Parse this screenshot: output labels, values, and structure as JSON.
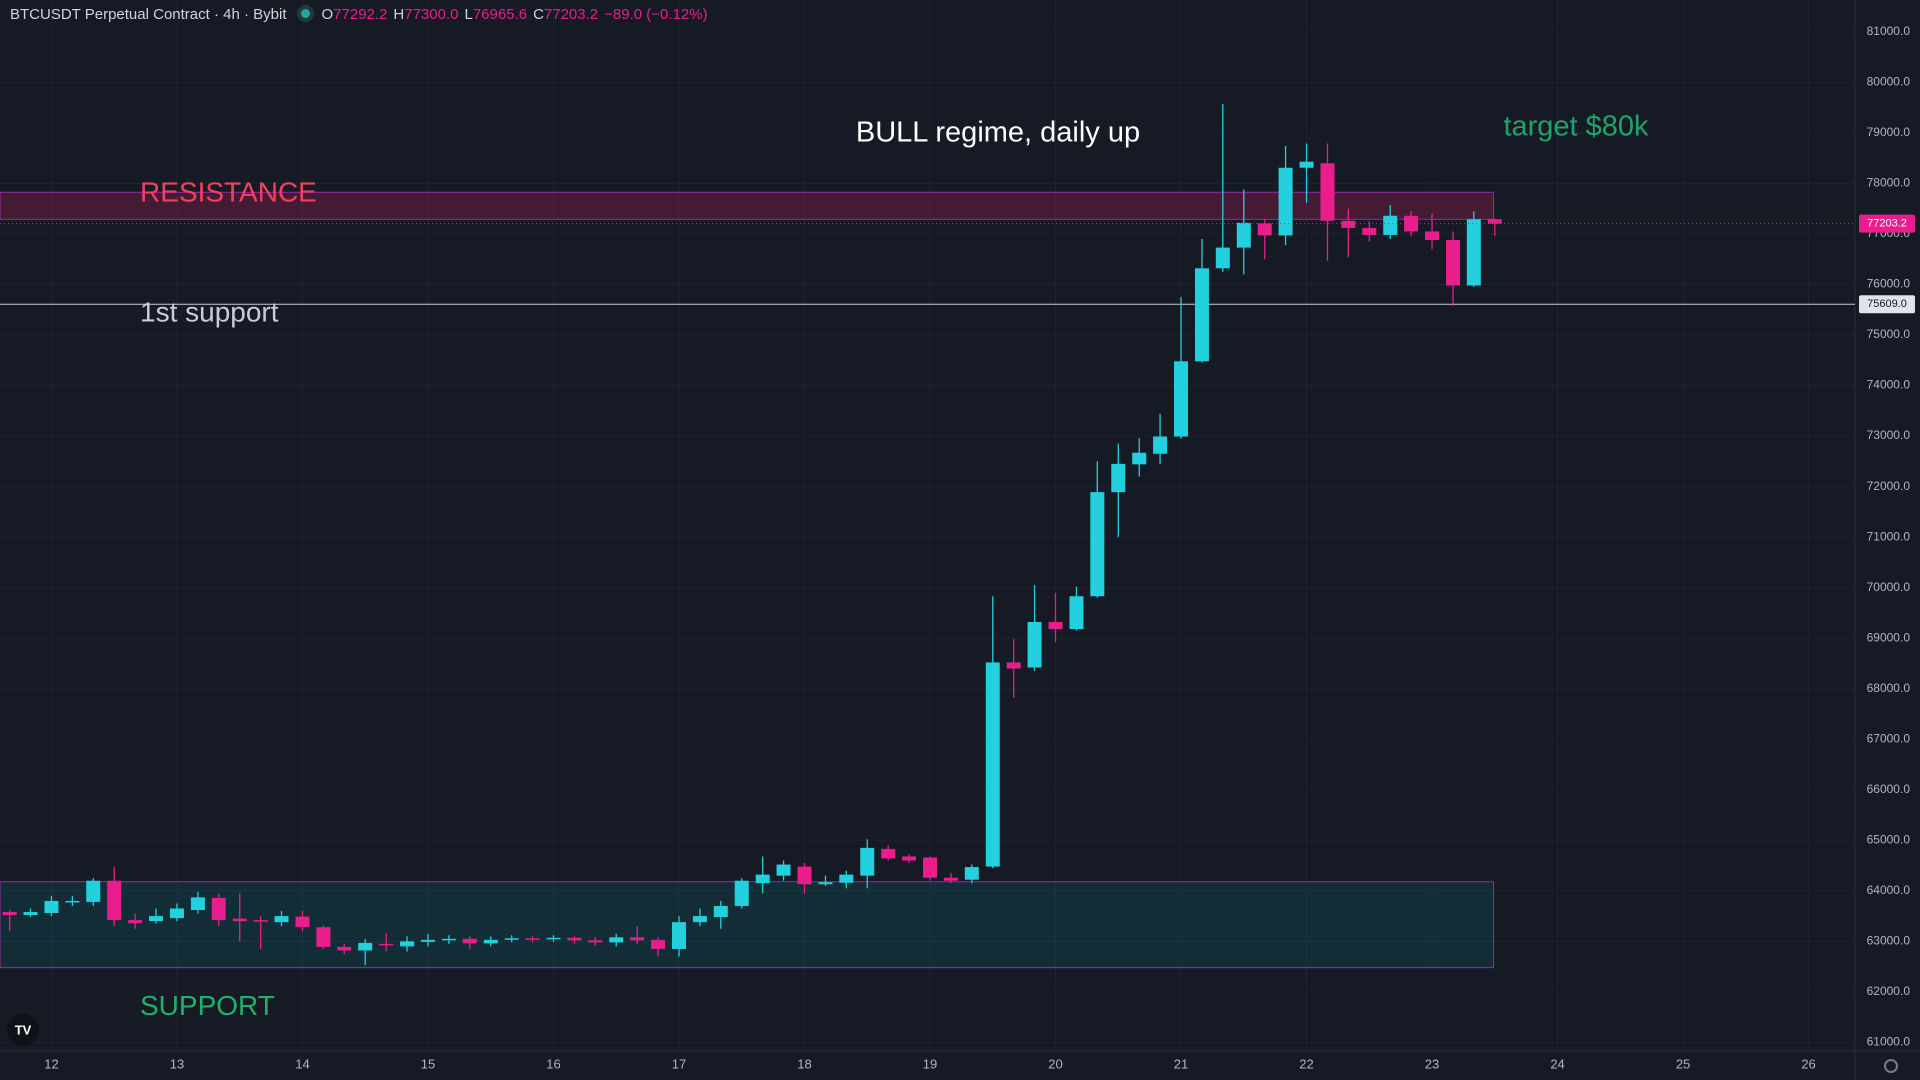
{
  "header": {
    "symbol": "BTCUSDT Perpetual Contract · 4h · Bybit",
    "ohlc": [
      {
        "key": "O",
        "text": "77292.2"
      },
      {
        "key": "H",
        "text": "77300.0"
      },
      {
        "key": "L",
        "text": "76965.6"
      },
      {
        "key": "C",
        "text": "77203.2"
      }
    ],
    "change": "−89.0 (−0.12%)"
  },
  "chart_data": {
    "type": "candlestick",
    "x": [
      11.667,
      11.833,
      12,
      12.167,
      12.333,
      12.5,
      12.667,
      12.833,
      13,
      13.167,
      13.333,
      13.5,
      13.667,
      13.833,
      14,
      14.167,
      14.333,
      14.5,
      14.667,
      14.833,
      15,
      15.167,
      15.333,
      15.5,
      15.667,
      15.833,
      16,
      16.167,
      16.333,
      16.5,
      16.667,
      16.833,
      17,
      17.167,
      17.333,
      17.5,
      17.667,
      17.833,
      18,
      18.167,
      18.333,
      18.5,
      18.667,
      18.833,
      19,
      19.167,
      19.333,
      19.5,
      19.667,
      19.833,
      20,
      20.167,
      20.333,
      20.5,
      20.667,
      20.833,
      21,
      21.167,
      21.333,
      21.5,
      21.667,
      21.833,
      22,
      22.167,
      22.333,
      22.5,
      22.667,
      22.833,
      23,
      23.167,
      23.333,
      23.5
    ],
    "open": [
      63580,
      63520,
      63560,
      63780,
      63780,
      64200,
      63420,
      63400,
      63460,
      63620,
      63860,
      63450,
      63420,
      63380,
      63490,
      63280,
      62890,
      62820,
      62950,
      62900,
      62990,
      63030,
      63050,
      62960,
      63030,
      63060,
      63050,
      63070,
      63020,
      62980,
      63080,
      63030,
      62850,
      63380,
      63480,
      63700,
      64150,
      64300,
      64480,
      64130,
      64160,
      64300,
      64830,
      64680,
      64660,
      64260,
      64220,
      64480,
      68520,
      68420,
      69320,
      69180,
      69830,
      71890,
      72440,
      72650,
      72990,
      74480,
      76320,
      76730,
      77210,
      76970,
      78310,
      78400,
      77260,
      77120,
      76980,
      77360,
      77050,
      76880,
      75980,
      77292.2
    ],
    "high": [
      63620,
      63650,
      63900,
      63900,
      64250,
      64480,
      63550,
      63650,
      63750,
      63980,
      63950,
      63950,
      63500,
      63600,
      63600,
      63320,
      62950,
      63050,
      63160,
      63100,
      63150,
      63120,
      63100,
      63100,
      63120,
      63100,
      63120,
      63100,
      63080,
      63150,
      63300,
      63080,
      63500,
      63650,
      63800,
      64250,
      64680,
      64600,
      64550,
      64300,
      64400,
      65020,
      64900,
      64720,
      64680,
      64350,
      64520,
      69830,
      68980,
      70050,
      69900,
      70020,
      72500,
      72850,
      72960,
      73440,
      75750,
      76900,
      79570,
      77880,
      77300,
      78740,
      78790,
      78790,
      77500,
      77250,
      77570,
      77450,
      77400,
      77050,
      77450,
      77300
    ],
    "low": [
      63200,
      63480,
      63500,
      63700,
      63700,
      63300,
      63250,
      63350,
      63400,
      63550,
      63300,
      63000,
      62850,
      63300,
      63200,
      62850,
      62750,
      62530,
      62800,
      62800,
      62900,
      62950,
      62850,
      62900,
      62980,
      62980,
      62990,
      62950,
      62920,
      62900,
      62950,
      62700,
      62700,
      63300,
      63250,
      63650,
      63950,
      64200,
      63950,
      64100,
      64050,
      64050,
      64600,
      64550,
      64200,
      64150,
      64150,
      64450,
      67820,
      68350,
      68920,
      69150,
      69800,
      71000,
      72200,
      72450,
      72950,
      74450,
      76250,
      76200,
      76500,
      76780,
      77620,
      76470,
      76540,
      76850,
      76900,
      76950,
      76700,
      75570,
      75950,
      76965.6
    ],
    "close": [
      63520,
      63580,
      63800,
      63800,
      64200,
      63420,
      63360,
      63500,
      63650,
      63870,
      63420,
      63400,
      63400,
      63500,
      63280,
      62890,
      62820,
      62970,
      62930,
      63000,
      63030,
      63050,
      62960,
      63030,
      63060,
      63050,
      63070,
      63020,
      62980,
      63080,
      63020,
      62850,
      63380,
      63500,
      63700,
      64200,
      64320,
      64520,
      64130,
      64170,
      64320,
      64850,
      64640,
      64600,
      64260,
      64200,
      64470,
      68520,
      68400,
      69320,
      69180,
      69830,
      71890,
      72450,
      72670,
      72990,
      74480,
      76320,
      76730,
      77220,
      76970,
      78310,
      78430,
      77260,
      77120,
      76980,
      77360,
      77050,
      76880,
      75980,
      77290,
      77203.2
    ],
    "up_color": "#22d1dd",
    "down_color": "#e91e8c",
    "xlim": [
      11.59,
      26.37
    ],
    "xticks": [
      12,
      13,
      14,
      15,
      16,
      17,
      18,
      19,
      20,
      21,
      22,
      23,
      24,
      25,
      26
    ],
    "ylim": [
      60830,
      81630
    ],
    "yticks": [
      {
        "value": 61000,
        "label": "61000.0"
      },
      {
        "value": 62000,
        "label": "62000.0"
      },
      {
        "value": 63000,
        "label": "63000.0"
      },
      {
        "value": 64000,
        "label": "64000.0"
      },
      {
        "value": 65000,
        "label": "65000.0"
      },
      {
        "value": 66000,
        "label": "66000.0"
      },
      {
        "value": 67000,
        "label": "67000.0"
      },
      {
        "value": 68000,
        "label": "68000.0"
      },
      {
        "value": 69000,
        "label": "69000.0"
      },
      {
        "value": 70000,
        "label": "70000.0"
      },
      {
        "value": 71000,
        "label": "71000.0"
      },
      {
        "value": 72000,
        "label": "72000.0"
      },
      {
        "value": 73000,
        "label": "73000.0"
      },
      {
        "value": 74000,
        "label": "74000.0"
      },
      {
        "value": 75000,
        "label": "75000.0"
      },
      {
        "value": 76000,
        "label": "76000.0"
      },
      {
        "value": 77000,
        "label": "77000.0"
      },
      {
        "value": 78000,
        "label": "78000.0"
      },
      {
        "value": 79000,
        "label": "79000.0"
      },
      {
        "value": 80000,
        "label": "80000.0"
      },
      {
        "value": 81000,
        "label": "81000.0"
      }
    ],
    "grid": true,
    "zones": [
      {
        "name": "RESISTANCE",
        "low": 77290,
        "high": 77825,
        "x_end": 23.49,
        "fill": "rgba(233,30,99,0.22)",
        "stroke": "#9c27b0",
        "text_color": "#f2415f"
      },
      {
        "name": "SUPPORT",
        "low": 62480,
        "high": 64180,
        "x_end": 23.49,
        "fill": "rgba(0,150,136,0.16)",
        "stroke": "#9c27b0",
        "text_color": "#1fb06b"
      }
    ],
    "lines": [
      {
        "name": "1st support",
        "value": 75609,
        "label": "75609.0",
        "color": "#c8ccd6"
      }
    ],
    "last_price": {
      "value": 77203.2,
      "color": "#e91e8c"
    },
    "annotations": [
      {
        "text": "BULL regime, daily up",
        "color": "#ffffff"
      },
      {
        "text": "target $80k",
        "color": "#1fa36a"
      }
    ]
  }
}
